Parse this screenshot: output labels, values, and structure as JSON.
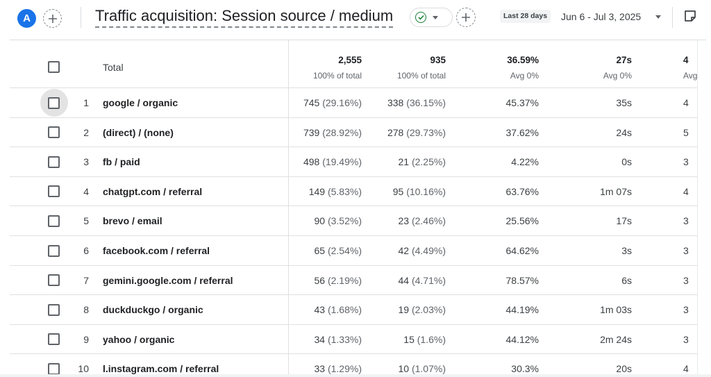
{
  "header": {
    "avatar_letter": "A",
    "report_title": "Traffic acquisition: Session source / medium",
    "date_badge": "Last 28 days",
    "date_range": "Jun 6 - Jul 3, 2025",
    "icons": [
      "plus-icon",
      "check-circle-icon",
      "chevron-down-icon",
      "plus-icon",
      "chevron-down-icon",
      "note-icon"
    ]
  },
  "table": {
    "total_label": "Total",
    "totals": [
      {
        "value": "2,555",
        "sub": "100% of total"
      },
      {
        "value": "935",
        "sub": "100% of total"
      },
      {
        "value": "36.59%",
        "sub": "Avg 0%"
      },
      {
        "value": "27s",
        "sub": "Avg 0%"
      },
      {
        "value": "4",
        "sub": "Avg"
      }
    ],
    "rows": [
      {
        "num": "1",
        "dim": "google / organic",
        "c1v": "745",
        "c1p": "(29.16%)",
        "c2v": "338",
        "c2p": "(36.15%)",
        "c3": "45.37%",
        "c4": "35s",
        "c5": "4"
      },
      {
        "num": "2",
        "dim": "(direct) / (none)",
        "c1v": "739",
        "c1p": "(28.92%)",
        "c2v": "278",
        "c2p": "(29.73%)",
        "c3": "37.62%",
        "c4": "24s",
        "c5": "5"
      },
      {
        "num": "3",
        "dim": "fb / paid",
        "c1v": "498",
        "c1p": "(19.49%)",
        "c2v": "21",
        "c2p": "(2.25%)",
        "c3": "4.22%",
        "c4": "0s",
        "c5": "3"
      },
      {
        "num": "4",
        "dim": "chatgpt.com / referral",
        "c1v": "149",
        "c1p": "(5.83%)",
        "c2v": "95",
        "c2p": "(10.16%)",
        "c3": "63.76%",
        "c4": "1m 07s",
        "c5": "4"
      },
      {
        "num": "5",
        "dim": "brevo / email",
        "c1v": "90",
        "c1p": "(3.52%)",
        "c2v": "23",
        "c2p": "(2.46%)",
        "c3": "25.56%",
        "c4": "17s",
        "c5": "3"
      },
      {
        "num": "6",
        "dim": "facebook.com / referral",
        "c1v": "65",
        "c1p": "(2.54%)",
        "c2v": "42",
        "c2p": "(4.49%)",
        "c3": "64.62%",
        "c4": "3s",
        "c5": "3"
      },
      {
        "num": "7",
        "dim": "gemini.google.com / referral",
        "c1v": "56",
        "c1p": "(2.19%)",
        "c2v": "44",
        "c2p": "(4.71%)",
        "c3": "78.57%",
        "c4": "6s",
        "c5": "3"
      },
      {
        "num": "8",
        "dim": "duckduckgo / organic",
        "c1v": "43",
        "c1p": "(1.68%)",
        "c2v": "19",
        "c2p": "(2.03%)",
        "c3": "44.19%",
        "c4": "1m 03s",
        "c5": "3"
      },
      {
        "num": "9",
        "dim": "yahoo / organic",
        "c1v": "34",
        "c1p": "(1.33%)",
        "c2v": "15",
        "c2p": "(1.6%)",
        "c3": "44.12%",
        "c4": "2m 24s",
        "c5": "3"
      },
      {
        "num": "10",
        "dim": "l.instagram.com / referral",
        "c1v": "33",
        "c1p": "(1.29%)",
        "c2v": "10",
        "c2p": "(1.07%)",
        "c3": "30.3%",
        "c4": "20s",
        "c5": "4"
      }
    ]
  },
  "colors": {
    "accent": "#1a73e8",
    "success": "#188038",
    "text": "#202124",
    "muted": "#5f6368",
    "grid": "#e0e0e0"
  }
}
